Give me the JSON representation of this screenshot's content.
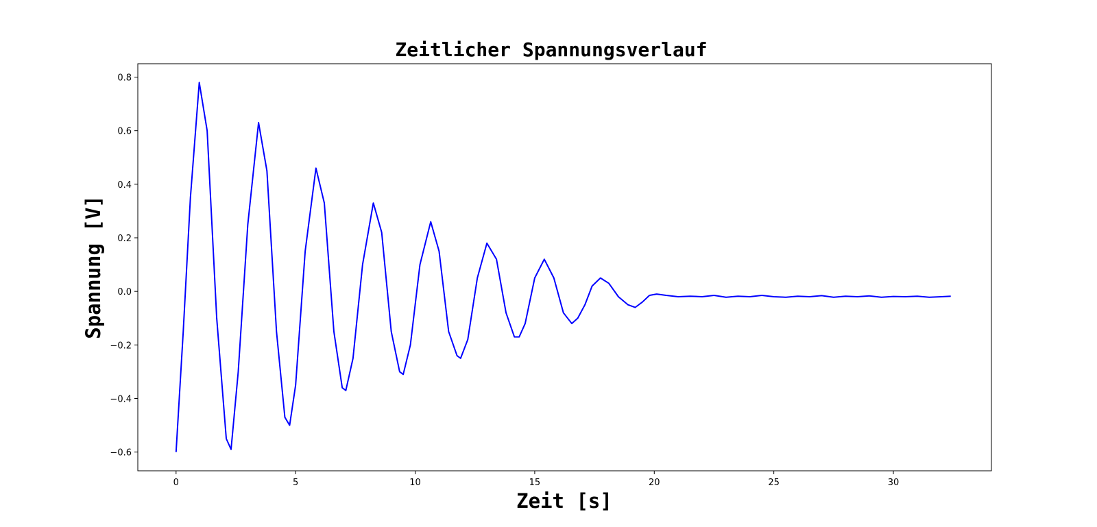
{
  "chart_data": {
    "type": "line",
    "title": "Zeitlicher Spannungsverlauf",
    "xlabel": "Zeit [s]",
    "ylabel": "Spannung [V]",
    "xlim": [
      -1.6,
      34.1
    ],
    "ylim": [
      -0.67,
      0.85
    ],
    "xticks": [
      0,
      5,
      10,
      15,
      20,
      25,
      30
    ],
    "xtick_labels": [
      "0",
      "5",
      "10",
      "15",
      "20",
      "25",
      "30"
    ],
    "yticks": [
      -0.6,
      -0.4,
      -0.2,
      0.0,
      0.2,
      0.4,
      0.6,
      0.8
    ],
    "ytick_labels": [
      "−0.6",
      "−0.4",
      "−0.2",
      "0.0",
      "0.2",
      "0.4",
      "0.6",
      "0.8"
    ],
    "grid": false,
    "legend": "none",
    "color": "#0000ff",
    "series": [
      {
        "x": [
          0.0,
          0.3,
          0.6,
          0.97,
          1.3,
          1.7,
          2.1,
          2.3,
          2.6,
          3.0,
          3.45,
          3.8,
          4.2,
          4.55,
          4.75,
          5.0,
          5.4,
          5.85,
          6.2,
          6.6,
          6.95,
          7.1,
          7.4,
          7.8,
          8.25,
          8.6,
          9.0,
          9.35,
          9.5,
          9.8,
          10.2,
          10.65,
          11.0,
          11.4,
          11.75,
          11.9,
          12.2,
          12.6,
          13.0,
          13.4,
          13.8,
          14.15,
          14.35,
          14.6,
          15.0,
          15.4,
          15.8,
          16.2,
          16.55,
          16.8,
          17.1,
          17.4,
          17.75,
          18.1,
          18.5,
          18.9,
          19.2,
          19.5,
          19.8,
          20.1,
          20.5,
          21.0,
          21.5,
          22.0,
          22.5,
          23.0,
          23.5,
          24.0,
          24.5,
          25.0,
          25.5,
          26.0,
          26.5,
          27.0,
          27.5,
          28.0,
          28.5,
          29.0,
          29.5,
          30.0,
          30.5,
          31.0,
          31.5,
          32.0,
          32.4
        ],
        "y": [
          -0.6,
          -0.15,
          0.35,
          0.78,
          0.6,
          -0.1,
          -0.55,
          -0.59,
          -0.3,
          0.25,
          0.63,
          0.45,
          -0.15,
          -0.47,
          -0.5,
          -0.35,
          0.15,
          0.46,
          0.33,
          -0.15,
          -0.36,
          -0.37,
          -0.25,
          0.1,
          0.33,
          0.22,
          -0.15,
          -0.3,
          -0.31,
          -0.2,
          0.1,
          0.26,
          0.15,
          -0.15,
          -0.24,
          -0.25,
          -0.18,
          0.05,
          0.18,
          0.12,
          -0.08,
          -0.17,
          -0.17,
          -0.12,
          0.05,
          0.12,
          0.05,
          -0.08,
          -0.12,
          -0.1,
          -0.05,
          0.02,
          0.05,
          0.03,
          -0.02,
          -0.05,
          -0.06,
          -0.04,
          -0.015,
          -0.01,
          -0.015,
          -0.02,
          -0.018,
          -0.02,
          -0.015,
          -0.022,
          -0.018,
          -0.02,
          -0.015,
          -0.02,
          -0.022,
          -0.018,
          -0.02,
          -0.016,
          -0.022,
          -0.018,
          -0.02,
          -0.017,
          -0.022,
          -0.019,
          -0.02,
          -0.018,
          -0.022,
          -0.02,
          -0.018
        ]
      }
    ]
  }
}
